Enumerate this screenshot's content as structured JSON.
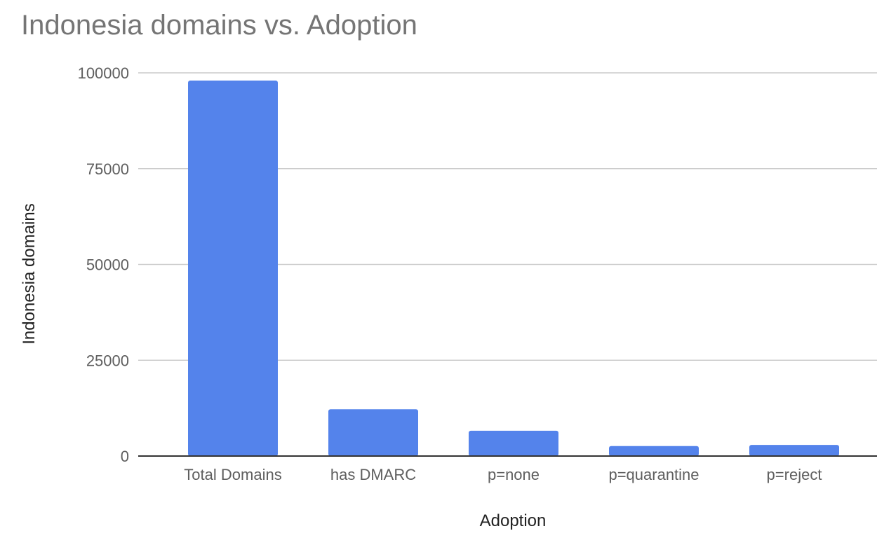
{
  "chart_data": {
    "type": "bar",
    "title": "Indonesia domains vs. Adoption",
    "xlabel": "Adoption",
    "ylabel": "Indonesia domains",
    "categories": [
      "Total Domains",
      "has DMARC",
      "p=none",
      "p=quarantine",
      "p=reject"
    ],
    "values": [
      98000,
      12200,
      6600,
      2600,
      2900
    ],
    "ylim": [
      0,
      100000
    ],
    "yticks": [
      0,
      25000,
      50000,
      75000,
      100000
    ],
    "ytick_labels": [
      "0",
      "25000",
      "50000",
      "75000",
      "100000"
    ],
    "grid": true,
    "legend": "none",
    "bar_color": "#5483eb",
    "grid_color": "#cccccc",
    "baseline_color": "#333333"
  }
}
